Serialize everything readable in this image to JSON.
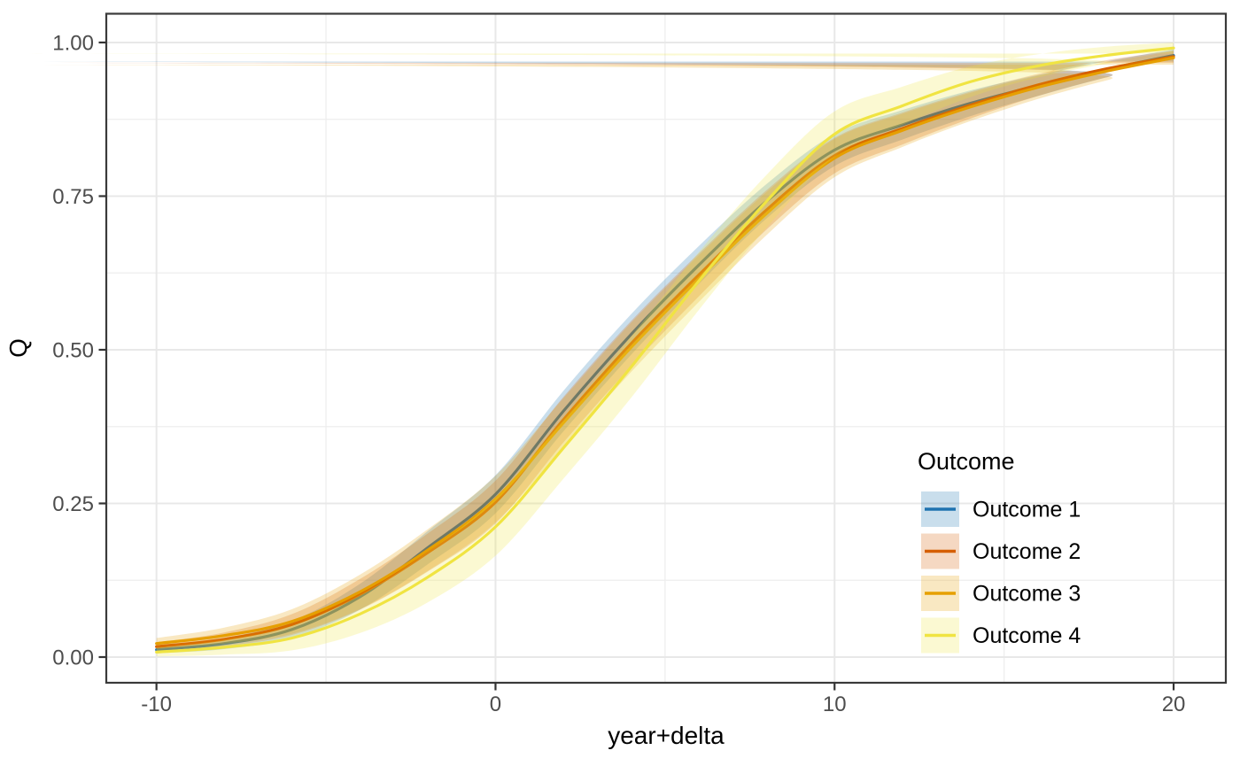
{
  "theme": {
    "background": "#ffffff",
    "panel_border": "#3a3a3a",
    "grid_major": "#e8e8e8",
    "grid_minor": "#eeeeee",
    "tick_color": "#333333",
    "tick_label_color": "#4d4d4d",
    "text_color": "#000000",
    "band_opacity": 0.24
  },
  "chart_data": {
    "type": "line",
    "title": "",
    "xlabel": "year+delta",
    "ylabel": "Q",
    "xlim": [
      -11.48,
      21.54
    ],
    "ylim": [
      -0.0418,
      1.0468
    ],
    "grid": "major+minor",
    "x_tick_values": [
      -10,
      0,
      10,
      20
    ],
    "x_tick_labels": [
      "-10",
      "0",
      "10",
      "20"
    ],
    "x_minor_ticks": [
      -5,
      5,
      15
    ],
    "y_tick_values": [
      0.0,
      0.25,
      0.5,
      0.75,
      1.0
    ],
    "y_tick_labels": [
      "0.00",
      "0.25",
      "0.50",
      "0.75",
      "1.00"
    ],
    "y_minor_ticks": [
      0.125,
      0.375,
      0.625,
      0.875
    ],
    "legend": {
      "title": "Outcome",
      "position": "inside-right"
    },
    "x": [
      -10,
      -8,
      -6,
      -4,
      -2,
      0,
      2,
      4,
      6,
      8,
      10,
      12,
      14,
      16,
      18,
      20
    ],
    "series": [
      {
        "name": "Outcome 1",
        "color": "#1f73b0",
        "values": [
          0.012,
          0.022,
          0.045,
          0.098,
          0.178,
          0.265,
          0.4,
          0.525,
          0.638,
          0.742,
          0.825,
          0.866,
          0.901,
          0.93,
          0.956,
          0.979
        ],
        "band": [
          0.006,
          0.009,
          0.014,
          0.021,
          0.027,
          0.031,
          0.033,
          0.033,
          0.031,
          0.028,
          0.026,
          0.024,
          0.021,
          0.017,
          0.013,
          0.01
        ]
      },
      {
        "name": "Outcome 2",
        "color": "#d55e00",
        "values": [
          0.017,
          0.029,
          0.053,
          0.102,
          0.17,
          0.252,
          0.386,
          0.51,
          0.622,
          0.728,
          0.816,
          0.86,
          0.898,
          0.931,
          0.957,
          0.977
        ],
        "band": [
          0.007,
          0.011,
          0.017,
          0.025,
          0.031,
          0.035,
          0.037,
          0.037,
          0.035,
          0.032,
          0.029,
          0.026,
          0.022,
          0.018,
          0.014,
          0.01
        ]
      },
      {
        "name": "Outcome 3",
        "color": "#e69f00",
        "values": [
          0.022,
          0.035,
          0.058,
          0.106,
          0.174,
          0.257,
          0.381,
          0.504,
          0.616,
          0.722,
          0.812,
          0.857,
          0.895,
          0.927,
          0.953,
          0.975
        ],
        "band": [
          0.009,
          0.013,
          0.02,
          0.028,
          0.034,
          0.038,
          0.04,
          0.04,
          0.038,
          0.035,
          0.031,
          0.027,
          0.023,
          0.019,
          0.015,
          0.011
        ]
      },
      {
        "name": "Outcome 4",
        "color": "#f0e442",
        "values": [
          0.008,
          0.016,
          0.031,
          0.07,
          0.13,
          0.212,
          0.34,
          0.472,
          0.612,
          0.742,
          0.851,
          0.897,
          0.936,
          0.962,
          0.979,
          0.991
        ],
        "band": [
          0.007,
          0.012,
          0.02,
          0.031,
          0.041,
          0.047,
          0.05,
          0.05,
          0.047,
          0.043,
          0.037,
          0.031,
          0.025,
          0.019,
          0.014,
          0.009
        ]
      }
    ]
  }
}
